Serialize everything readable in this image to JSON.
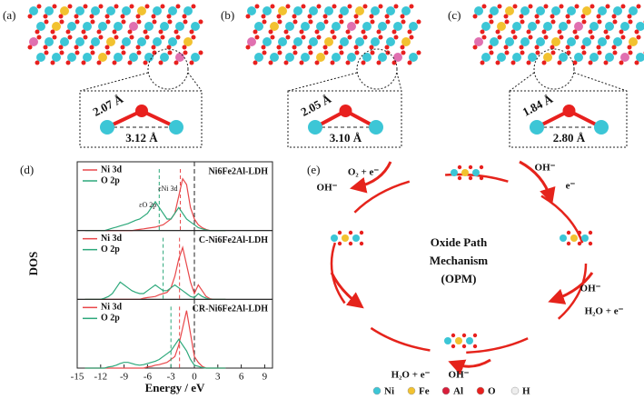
{
  "panels": [
    {
      "label": "(a)",
      "bond": "2.07 Å",
      "distance": "3.12 Å"
    },
    {
      "label": "(b)",
      "bond": "2.05 Å",
      "distance": "3.10 Å"
    },
    {
      "label": "(c)",
      "bond": "1.84 Å",
      "distance": "2.80 Å"
    }
  ],
  "chart_data": {
    "type": "line",
    "label": "(d)",
    "xlabel": "Energy / eV",
    "ylabel": "DOS",
    "xlim": [
      -15,
      10
    ],
    "xticks": [
      -15,
      -12,
      -9,
      -6,
      -3,
      0,
      3,
      6,
      9
    ],
    "ylim": [
      0,
      11
    ],
    "fermi": 0,
    "x": [
      -14,
      -13.5,
      -13,
      -12.5,
      -12,
      -11.5,
      -11,
      -10.5,
      -10,
      -9.5,
      -9,
      -8.5,
      -8,
      -7.5,
      -7,
      -6.5,
      -6,
      -5.5,
      -5,
      -4.5,
      -4,
      -3.5,
      -3,
      -2.5,
      -2,
      -1.5,
      -1,
      -0.5,
      0,
      0.5,
      1,
      1.5,
      2,
      2.5,
      3,
      3.5,
      4
    ],
    "subplots": [
      {
        "title": "Ni6Fe2Al-LDH",
        "series": [
          {
            "name": "Ni 3d",
            "color": "#e8474a",
            "values": [
              0,
              0,
              0,
              0,
              0,
              0,
              0,
              0,
              0,
              0,
              0,
              0,
              0,
              0.1,
              0.2,
              0.3,
              0.4,
              0.5,
              0.6,
              0.8,
              1,
              1.5,
              2,
              3,
              6,
              9,
              8,
              4,
              2,
              1,
              0.5,
              0.2,
              0,
              0,
              0,
              0,
              0
            ]
          },
          {
            "name": "O 2p",
            "color": "#2ca87a",
            "values": [
              0,
              0,
              0,
              0,
              0,
              0,
              0.2,
              0.4,
              0.6,
              0.8,
              1,
              1.2,
              1.5,
              1.8,
              2,
              2.5,
              3,
              4,
              5,
              4,
              3,
              2,
              2,
              3,
              4,
              3,
              2,
              1.5,
              1,
              0.5,
              0.3,
              0.1,
              0,
              0,
              0,
              0,
              0
            ]
          }
        ],
        "centers": [
          -1.8,
          -4.5
        ],
        "annotations": [
          "εNi 3d",
          "εO 2p"
        ]
      },
      {
        "title": "C-Ni6Fe2Al-LDH",
        "series": [
          {
            "name": "Ni 3d",
            "color": "#e8474a",
            "values": [
              0,
              0,
              0,
              0,
              0,
              0,
              0,
              0,
              0,
              0,
              0,
              0,
              0,
              0,
              0,
              0.2,
              0.3,
              0.4,
              0.5,
              0.8,
              1,
              1.2,
              2,
              4,
              7,
              9,
              6,
              3,
              1,
              2.5,
              1.5,
              0.5,
              0.1,
              0,
              0,
              0,
              0
            ]
          },
          {
            "name": "O 2p",
            "color": "#2ca87a",
            "values": [
              0,
              0,
              0,
              0,
              0,
              0.2,
              0.5,
              1,
              2,
              3,
              2.5,
              2,
              1.5,
              1.2,
              1,
              1,
              1.5,
              2,
              2.5,
              2,
              1.5,
              1.5,
              2,
              2.5,
              2,
              1.5,
              1,
              0.5,
              0.3,
              1,
              0.5,
              0.2,
              0,
              0,
              0,
              0,
              0
            ]
          }
        ],
        "centers": [
          -1.9,
          -4.0
        ]
      },
      {
        "title": "CR-Ni6Fe2Al-LDH",
        "series": [
          {
            "name": "Ni 3d",
            "color": "#e8474a",
            "values": [
              0,
              0,
              0,
              0,
              0,
              0,
              0,
              0,
              0,
              0,
              0,
              0,
              0,
              0,
              0,
              0,
              0.2,
              0.3,
              0.5,
              0.6,
              0.8,
              1,
              1.5,
              2,
              4,
              7,
              10,
              6,
              2,
              1,
              0.3,
              0,
              0,
              0,
              0,
              0,
              0
            ]
          },
          {
            "name": "O 2p",
            "color": "#2ca87a",
            "values": [
              0,
              0,
              0,
              0,
              0,
              0,
              0.2,
              0.3,
              0.5,
              0.8,
              1,
              1,
              0.8,
              0.6,
              0.5,
              0.6,
              0.8,
              1,
              1.2,
              1.5,
              2,
              2.5,
              3,
              4,
              5,
              4,
              3,
              1.5,
              0.5,
              0.3,
              0.1,
              0,
              0,
              0,
              0,
              0,
              0
            ]
          }
        ],
        "centers": [
          -1.9,
          -3.0
        ]
      }
    ]
  },
  "cycle": {
    "label": "(e)",
    "title": [
      "Oxide Path",
      "Mechanism",
      "(OPM)"
    ],
    "steps": [
      "O₂ + e⁻",
      "OH⁻",
      "OH⁻",
      "e⁻",
      "OH⁻",
      "H₂O + e⁻",
      "H₂O + e⁻",
      "OH⁻"
    ],
    "legend": [
      {
        "name": "Ni",
        "color": "#3cc6d6"
      },
      {
        "name": "Fe",
        "color": "#f2c230"
      },
      {
        "name": "Al",
        "color": "#d81e3a"
      },
      {
        "name": "O",
        "color": "#e8201e"
      },
      {
        "name": "H",
        "color": "#eeeeee"
      }
    ]
  }
}
